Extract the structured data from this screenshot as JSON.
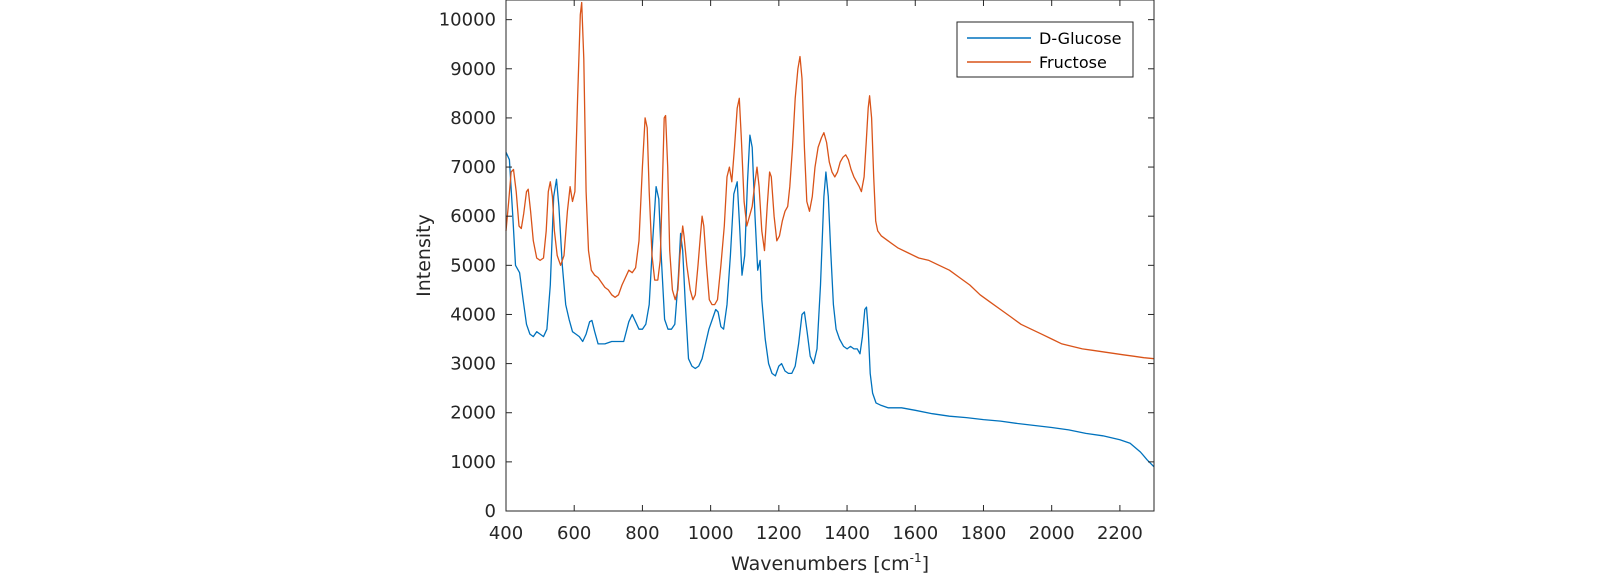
{
  "chart_data": {
    "type": "line",
    "title": "",
    "xlabel": "Wavenumbers [cm",
    "xlabel_sup": "-1",
    "xlabel_close": "]",
    "ylabel": "Intensity",
    "xlim": [
      400,
      2300
    ],
    "ylim": [
      0,
      10400
    ],
    "xticks": [
      400,
      600,
      800,
      1000,
      1200,
      1400,
      1600,
      1800,
      2000,
      2200
    ],
    "yticks": [
      0,
      1000,
      2000,
      3000,
      4000,
      5000,
      6000,
      7000,
      8000,
      9000,
      10000
    ],
    "grid": false,
    "legend_position": "top-right",
    "series": [
      {
        "name": "D-Glucose",
        "color": "#0072BD",
        "points": [
          [
            400,
            7300
          ],
          [
            410,
            7150
          ],
          [
            420,
            6000
          ],
          [
            428,
            5000
          ],
          [
            440,
            4850
          ],
          [
            450,
            4300
          ],
          [
            460,
            3800
          ],
          [
            470,
            3600
          ],
          [
            480,
            3550
          ],
          [
            490,
            3650
          ],
          [
            500,
            3600
          ],
          [
            510,
            3550
          ],
          [
            520,
            3700
          ],
          [
            530,
            4600
          ],
          [
            540,
            6400
          ],
          [
            548,
            6750
          ],
          [
            555,
            6200
          ],
          [
            565,
            5000
          ],
          [
            575,
            4200
          ],
          [
            585,
            3900
          ],
          [
            595,
            3650
          ],
          [
            605,
            3600
          ],
          [
            615,
            3550
          ],
          [
            625,
            3450
          ],
          [
            635,
            3600
          ],
          [
            645,
            3850
          ],
          [
            652,
            3880
          ],
          [
            660,
            3650
          ],
          [
            670,
            3400
          ],
          [
            690,
            3400
          ],
          [
            710,
            3450
          ],
          [
            730,
            3450
          ],
          [
            745,
            3450
          ],
          [
            760,
            3850
          ],
          [
            770,
            4000
          ],
          [
            780,
            3850
          ],
          [
            790,
            3700
          ],
          [
            800,
            3700
          ],
          [
            810,
            3800
          ],
          [
            820,
            4200
          ],
          [
            830,
            5500
          ],
          [
            840,
            6600
          ],
          [
            848,
            6350
          ],
          [
            855,
            5200
          ],
          [
            865,
            3900
          ],
          [
            875,
            3700
          ],
          [
            885,
            3700
          ],
          [
            895,
            3800
          ],
          [
            905,
            4700
          ],
          [
            912,
            5650
          ],
          [
            918,
            5300
          ],
          [
            925,
            4300
          ],
          [
            935,
            3100
          ],
          [
            945,
            2950
          ],
          [
            955,
            2900
          ],
          [
            965,
            2950
          ],
          [
            975,
            3100
          ],
          [
            985,
            3400
          ],
          [
            995,
            3700
          ],
          [
            1005,
            3900
          ],
          [
            1015,
            4100
          ],
          [
            1022,
            4050
          ],
          [
            1030,
            3750
          ],
          [
            1038,
            3700
          ],
          [
            1048,
            4200
          ],
          [
            1058,
            5200
          ],
          [
            1068,
            6450
          ],
          [
            1078,
            6700
          ],
          [
            1085,
            5800
          ],
          [
            1092,
            4800
          ],
          [
            1100,
            5200
          ],
          [
            1108,
            6700
          ],
          [
            1115,
            7650
          ],
          [
            1122,
            7400
          ],
          [
            1130,
            6000
          ],
          [
            1138,
            4900
          ],
          [
            1145,
            5100
          ],
          [
            1150,
            4300
          ],
          [
            1160,
            3500
          ],
          [
            1170,
            3000
          ],
          [
            1180,
            2800
          ],
          [
            1190,
            2750
          ],
          [
            1200,
            2950
          ],
          [
            1208,
            3000
          ],
          [
            1218,
            2850
          ],
          [
            1228,
            2800
          ],
          [
            1238,
            2800
          ],
          [
            1248,
            2950
          ],
          [
            1258,
            3400
          ],
          [
            1268,
            4000
          ],
          [
            1275,
            4050
          ],
          [
            1283,
            3650
          ],
          [
            1292,
            3150
          ],
          [
            1302,
            3000
          ],
          [
            1312,
            3300
          ],
          [
            1322,
            4600
          ],
          [
            1332,
            6400
          ],
          [
            1338,
            6900
          ],
          [
            1345,
            6400
          ],
          [
            1352,
            5300
          ],
          [
            1360,
            4200
          ],
          [
            1368,
            3700
          ],
          [
            1378,
            3500
          ],
          [
            1390,
            3350
          ],
          [
            1400,
            3300
          ],
          [
            1410,
            3350
          ],
          [
            1420,
            3300
          ],
          [
            1430,
            3300
          ],
          [
            1438,
            3200
          ],
          [
            1445,
            3550
          ],
          [
            1452,
            4100
          ],
          [
            1457,
            4150
          ],
          [
            1462,
            3700
          ],
          [
            1468,
            2800
          ],
          [
            1475,
            2400
          ],
          [
            1485,
            2200
          ],
          [
            1500,
            2150
          ],
          [
            1520,
            2100
          ],
          [
            1560,
            2100
          ],
          [
            1600,
            2050
          ],
          [
            1650,
            1980
          ],
          [
            1700,
            1930
          ],
          [
            1750,
            1900
          ],
          [
            1800,
            1860
          ],
          [
            1850,
            1830
          ],
          [
            1900,
            1780
          ],
          [
            1950,
            1740
          ],
          [
            2000,
            1700
          ],
          [
            2050,
            1650
          ],
          [
            2100,
            1580
          ],
          [
            2150,
            1530
          ],
          [
            2200,
            1450
          ],
          [
            2230,
            1380
          ],
          [
            2260,
            1200
          ],
          [
            2280,
            1040
          ],
          [
            2300,
            900
          ]
        ]
      },
      {
        "name": "Fructose",
        "color": "#D95319",
        "points": [
          [
            400,
            5700
          ],
          [
            408,
            6300
          ],
          [
            415,
            6900
          ],
          [
            422,
            6950
          ],
          [
            430,
            6500
          ],
          [
            438,
            5800
          ],
          [
            445,
            5750
          ],
          [
            452,
            6050
          ],
          [
            460,
            6500
          ],
          [
            465,
            6550
          ],
          [
            472,
            6100
          ],
          [
            480,
            5500
          ],
          [
            490,
            5150
          ],
          [
            500,
            5100
          ],
          [
            510,
            5150
          ],
          [
            518,
            5700
          ],
          [
            524,
            6500
          ],
          [
            530,
            6700
          ],
          [
            536,
            6400
          ],
          [
            542,
            5700
          ],
          [
            550,
            5200
          ],
          [
            560,
            5000
          ],
          [
            570,
            5200
          ],
          [
            580,
            6100
          ],
          [
            588,
            6600
          ],
          [
            595,
            6300
          ],
          [
            602,
            6500
          ],
          [
            610,
            8400
          ],
          [
            618,
            10100
          ],
          [
            622,
            10350
          ],
          [
            628,
            9200
          ],
          [
            635,
            6500
          ],
          [
            642,
            5300
          ],
          [
            650,
            4900
          ],
          [
            660,
            4800
          ],
          [
            670,
            4750
          ],
          [
            680,
            4650
          ],
          [
            690,
            4550
          ],
          [
            700,
            4500
          ],
          [
            710,
            4400
          ],
          [
            720,
            4350
          ],
          [
            730,
            4400
          ],
          [
            740,
            4600
          ],
          [
            750,
            4750
          ],
          [
            760,
            4900
          ],
          [
            770,
            4850
          ],
          [
            780,
            4950
          ],
          [
            790,
            5500
          ],
          [
            800,
            7000
          ],
          [
            808,
            8000
          ],
          [
            814,
            7800
          ],
          [
            820,
            6500
          ],
          [
            828,
            5200
          ],
          [
            836,
            4700
          ],
          [
            845,
            4700
          ],
          [
            852,
            5100
          ],
          [
            858,
            6500
          ],
          [
            864,
            8000
          ],
          [
            868,
            8050
          ],
          [
            874,
            7000
          ],
          [
            880,
            5300
          ],
          [
            888,
            4500
          ],
          [
            896,
            4300
          ],
          [
            904,
            4500
          ],
          [
            910,
            5200
          ],
          [
            918,
            5800
          ],
          [
            922,
            5600
          ],
          [
            930,
            5000
          ],
          [
            940,
            4500
          ],
          [
            948,
            4300
          ],
          [
            955,
            4400
          ],
          [
            963,
            5000
          ],
          [
            970,
            5600
          ],
          [
            975,
            6000
          ],
          [
            980,
            5800
          ],
          [
            988,
            5000
          ],
          [
            996,
            4300
          ],
          [
            1004,
            4200
          ],
          [
            1012,
            4200
          ],
          [
            1020,
            4300
          ],
          [
            1030,
            5000
          ],
          [
            1040,
            5800
          ],
          [
            1048,
            6800
          ],
          [
            1055,
            7000
          ],
          [
            1062,
            6700
          ],
          [
            1070,
            7400
          ],
          [
            1078,
            8200
          ],
          [
            1084,
            8400
          ],
          [
            1090,
            7600
          ],
          [
            1098,
            6300
          ],
          [
            1106,
            5800
          ],
          [
            1114,
            6000
          ],
          [
            1122,
            6200
          ],
          [
            1130,
            6700
          ],
          [
            1136,
            7000
          ],
          [
            1142,
            6600
          ],
          [
            1150,
            5700
          ],
          [
            1158,
            5300
          ],
          [
            1166,
            6200
          ],
          [
            1173,
            6900
          ],
          [
            1178,
            6800
          ],
          [
            1186,
            6000
          ],
          [
            1194,
            5500
          ],
          [
            1202,
            5600
          ],
          [
            1210,
            5900
          ],
          [
            1218,
            6100
          ],
          [
            1226,
            6200
          ],
          [
            1232,
            6600
          ],
          [
            1240,
            7400
          ],
          [
            1248,
            8400
          ],
          [
            1256,
            9000
          ],
          [
            1262,
            9250
          ],
          [
            1268,
            8800
          ],
          [
            1275,
            7400
          ],
          [
            1282,
            6300
          ],
          [
            1290,
            6100
          ],
          [
            1298,
            6400
          ],
          [
            1306,
            7000
          ],
          [
            1315,
            7400
          ],
          [
            1325,
            7600
          ],
          [
            1332,
            7700
          ],
          [
            1340,
            7500
          ],
          [
            1348,
            7100
          ],
          [
            1356,
            6900
          ],
          [
            1364,
            6800
          ],
          [
            1372,
            6900
          ],
          [
            1380,
            7100
          ],
          [
            1388,
            7200
          ],
          [
            1396,
            7250
          ],
          [
            1404,
            7150
          ],
          [
            1412,
            6950
          ],
          [
            1420,
            6800
          ],
          [
            1428,
            6700
          ],
          [
            1436,
            6600
          ],
          [
            1442,
            6500
          ],
          [
            1450,
            6800
          ],
          [
            1456,
            7500
          ],
          [
            1462,
            8200
          ],
          [
            1466,
            8450
          ],
          [
            1472,
            8000
          ],
          [
            1478,
            6800
          ],
          [
            1484,
            5900
          ],
          [
            1490,
            5700
          ],
          [
            1500,
            5600
          ],
          [
            1520,
            5500
          ],
          [
            1550,
            5350
          ],
          [
            1580,
            5250
          ],
          [
            1610,
            5150
          ],
          [
            1640,
            5100
          ],
          [
            1670,
            5000
          ],
          [
            1700,
            4900
          ],
          [
            1730,
            4750
          ],
          [
            1760,
            4600
          ],
          [
            1790,
            4400
          ],
          [
            1820,
            4250
          ],
          [
            1850,
            4100
          ],
          [
            1880,
            3950
          ],
          [
            1910,
            3800
          ],
          [
            1940,
            3700
          ],
          [
            1970,
            3600
          ],
          [
            2000,
            3500
          ],
          [
            2030,
            3400
          ],
          [
            2060,
            3350
          ],
          [
            2090,
            3300
          ],
          [
            2120,
            3270
          ],
          [
            2150,
            3240
          ],
          [
            2180,
            3210
          ],
          [
            2210,
            3180
          ],
          [
            2240,
            3150
          ],
          [
            2270,
            3120
          ],
          [
            2300,
            3100
          ]
        ]
      }
    ]
  }
}
